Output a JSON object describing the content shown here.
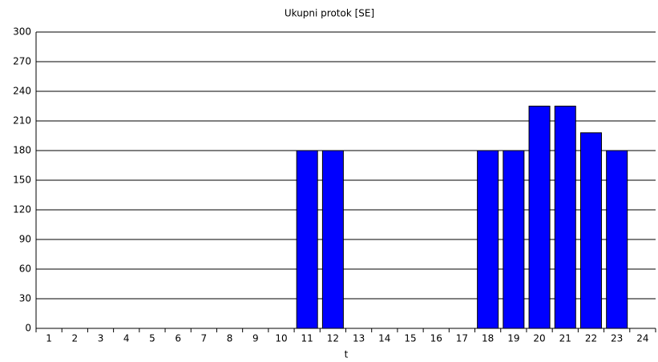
{
  "chart_data": {
    "type": "bar",
    "title": "Ukupni protok [SE]",
    "x_label": "t",
    "categories": [
      "1",
      "2",
      "3",
      "4",
      "5",
      "6",
      "7",
      "8",
      "9",
      "10",
      "11",
      "12",
      "13",
      "14",
      "15",
      "16",
      "17",
      "18",
      "19",
      "20",
      "21",
      "22",
      "23",
      "24"
    ],
    "values": [
      0,
      0,
      0,
      0,
      0,
      0,
      0,
      0,
      0,
      0,
      180,
      180,
      0,
      0,
      0,
      0,
      0,
      180,
      180,
      225,
      225,
      198,
      180,
      0
    ],
    "color": "#0000ff",
    "ylim": [
      0,
      300
    ],
    "yticks": [
      0,
      30,
      60,
      90,
      120,
      150,
      180,
      210,
      240,
      270,
      300
    ],
    "grid": true
  }
}
